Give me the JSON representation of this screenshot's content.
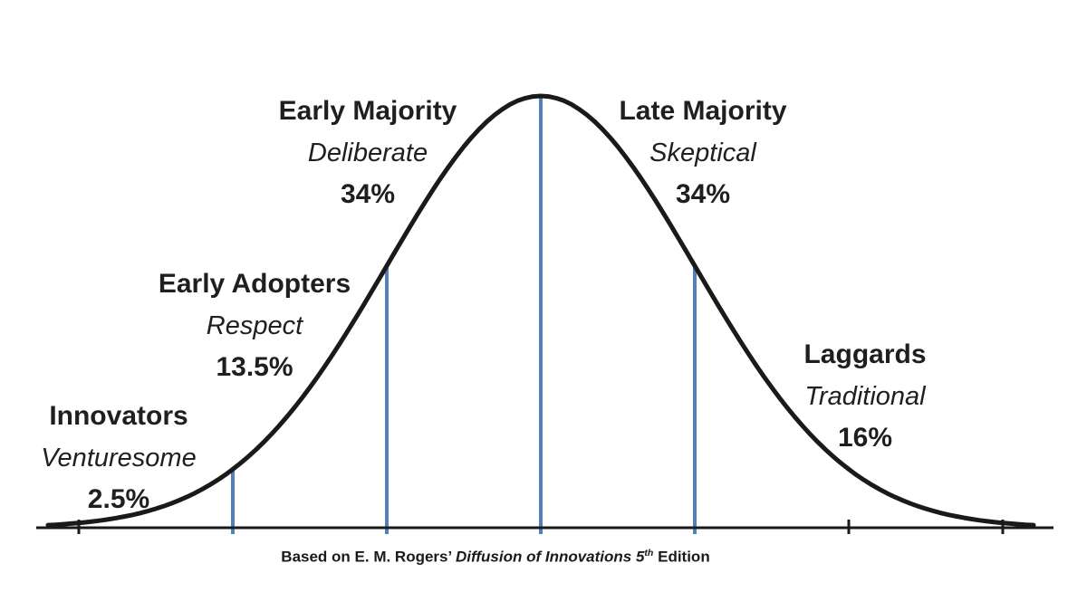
{
  "chart_data": {
    "type": "area",
    "description": "Bell curve of innovation adoption categories",
    "categories": [
      "Innovators",
      "Early Adopters",
      "Early Majority",
      "Late Majority",
      "Laggards"
    ],
    "values": [
      2.5,
      13.5,
      34,
      34,
      16
    ],
    "segments": [
      {
        "name": "Innovators",
        "trait": "Venturesome",
        "percent": "2.5%"
      },
      {
        "name": "Early Adopters",
        "trait": "Respect",
        "percent": "13.5%"
      },
      {
        "name": "Early Majority",
        "trait": "Deliberate",
        "percent": "34%"
      },
      {
        "name": "Late Majority",
        "trait": "Skeptical",
        "percent": "34%"
      },
      {
        "name": "Laggards",
        "trait": "Traditional",
        "percent": "16%"
      }
    ],
    "divider_positions_sd": [
      -2,
      -1,
      0,
      1
    ],
    "tick_positions_sd": [
      -3,
      2,
      3
    ],
    "colors": {
      "curve": "#1a1a1a",
      "marker": "#4f81bd",
      "text": "#1f1f1f"
    },
    "caption": {
      "prefix": "Based on E. M. Rogers’ ",
      "italic_part": "Diffusion of Innovations 5",
      "superscript": "th",
      "suffix": " Edition"
    },
    "legend": "none",
    "grid": "off"
  }
}
